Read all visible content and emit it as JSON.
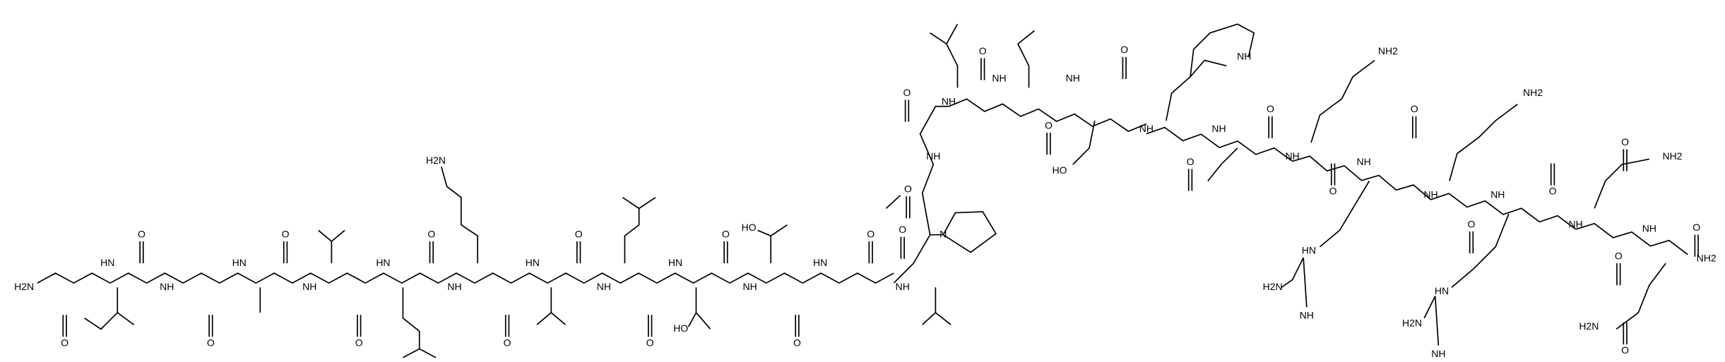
{
  "atoms": [
    "H2N",
    "O",
    "HN",
    "O",
    "NH",
    "O",
    "HN",
    "O",
    "NH",
    "O",
    "HN",
    "O",
    "H2N",
    "NH",
    "O",
    "HN",
    "O",
    "NH",
    "O",
    "HO",
    "HN",
    "O",
    "HO",
    "NH",
    "O",
    "HN",
    "O",
    "NH",
    "O",
    "N",
    "O",
    "NH",
    "O",
    "NH",
    "O",
    "NH",
    "O",
    "NH",
    "O",
    "HO",
    "NH",
    "O",
    "NH",
    "NH",
    "O",
    "NH2",
    "NH",
    "O",
    "NH",
    "O",
    "HN",
    "H2N",
    "NH",
    "NH",
    "NH2",
    "O",
    "NH",
    "O",
    "HN",
    "H2N",
    "NH",
    "O",
    "NH2",
    "NH",
    "O",
    "NH",
    "O",
    "NH2",
    "H2N",
    "O"
  ]
}
